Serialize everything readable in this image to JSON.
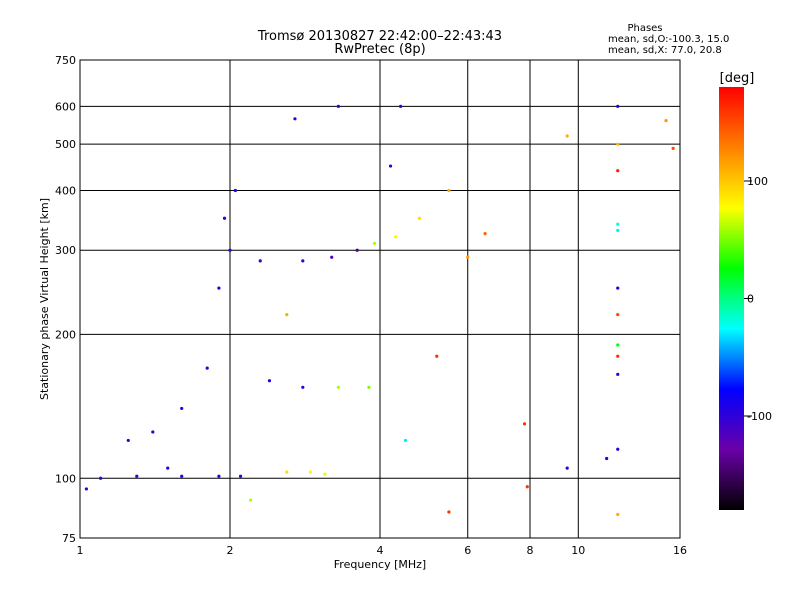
{
  "chart_data": {
    "type": "scatter",
    "title": "Tromsø 20130827 22:42:00–22:43:43",
    "subtitle": "RwPretec (8p)",
    "xlabel": "Frequency [MHz]",
    "ylabel": "Stationary phase Virtual Height [km]",
    "x_scale": "log",
    "y_scale": "log",
    "xlim": [
      1,
      16
    ],
    "ylim": [
      75,
      750
    ],
    "x_ticks": [
      1,
      2,
      4,
      6,
      8,
      10,
      16
    ],
    "y_ticks": [
      75,
      100,
      200,
      300,
      400,
      500,
      600,
      750
    ],
    "grid": true,
    "info": {
      "heading": "Phases",
      "line1": "mean, sd,O:-100.3, 15.0",
      "line2": "mean, sd,X:  77.0, 20.8"
    },
    "colorbar": {
      "unit": "[deg]",
      "ticks": [
        100,
        0,
        -100
      ],
      "range": [
        -180,
        180
      ],
      "colors": [
        "#000000",
        "#6a00a8",
        "#0000ff",
        "#00ffff",
        "#00ff00",
        "#ffff00",
        "#ff8000",
        "#ff0000"
      ]
    },
    "series": [
      {
        "x": 1.1,
        "y": 100,
        "phase": -100
      },
      {
        "x": 1.3,
        "y": 101,
        "phase": -100
      },
      {
        "x": 1.6,
        "y": 101,
        "phase": -100
      },
      {
        "x": 1.9,
        "y": 101,
        "phase": -100
      },
      {
        "x": 2.1,
        "y": 101,
        "phase": -100
      },
      {
        "x": 1.03,
        "y": 95,
        "phase": -100
      },
      {
        "x": 1.25,
        "y": 120,
        "phase": -100
      },
      {
        "x": 1.4,
        "y": 125,
        "phase": -100
      },
      {
        "x": 1.6,
        "y": 140,
        "phase": -100
      },
      {
        "x": 1.8,
        "y": 170,
        "phase": -100
      },
      {
        "x": 1.9,
        "y": 250,
        "phase": -100
      },
      {
        "x": 1.95,
        "y": 350,
        "phase": -100
      },
      {
        "x": 2.0,
        "y": 300,
        "phase": -100
      },
      {
        "x": 2.05,
        "y": 400,
        "phase": -100
      },
      {
        "x": 2.3,
        "y": 285,
        "phase": -100
      },
      {
        "x": 2.8,
        "y": 285,
        "phase": -100
      },
      {
        "x": 3.2,
        "y": 290,
        "phase": -120
      },
      {
        "x": 3.6,
        "y": 300,
        "phase": -140
      },
      {
        "x": 3.9,
        "y": 310,
        "phase": 60
      },
      {
        "x": 4.3,
        "y": 320,
        "phase": 80
      },
      {
        "x": 4.8,
        "y": 350,
        "phase": 90
      },
      {
        "x": 5.5,
        "y": 400,
        "phase": 110
      },
      {
        "x": 4.2,
        "y": 450,
        "phase": -100
      },
      {
        "x": 4.4,
        "y": 600,
        "phase": -100
      },
      {
        "x": 2.7,
        "y": 565,
        "phase": -100
      },
      {
        "x": 3.3,
        "y": 600,
        "phase": -100
      },
      {
        "x": 2.6,
        "y": 103,
        "phase": 90
      },
      {
        "x": 2.9,
        "y": 103,
        "phase": 80
      },
      {
        "x": 3.1,
        "y": 102,
        "phase": 70
      },
      {
        "x": 2.2,
        "y": 90,
        "phase": 60
      },
      {
        "x": 3.3,
        "y": 155,
        "phase": 60
      },
      {
        "x": 3.8,
        "y": 155,
        "phase": 50
      },
      {
        "x": 2.4,
        "y": 160,
        "phase": -100
      },
      {
        "x": 2.8,
        "y": 155,
        "phase": -100
      },
      {
        "x": 12,
        "y": 600,
        "phase": -100
      },
      {
        "x": 12,
        "y": 500,
        "phase": 110
      },
      {
        "x": 12,
        "y": 440,
        "phase": 170
      },
      {
        "x": 12,
        "y": 340,
        "phase": -20
      },
      {
        "x": 12,
        "y": 330,
        "phase": -30
      },
      {
        "x": 12,
        "y": 250,
        "phase": -100
      },
      {
        "x": 12,
        "y": 220,
        "phase": 150
      },
      {
        "x": 12,
        "y": 190,
        "phase": 20
      },
      {
        "x": 12,
        "y": 180,
        "phase": 160
      },
      {
        "x": 12,
        "y": 165,
        "phase": -100
      },
      {
        "x": 12,
        "y": 115,
        "phase": -100
      },
      {
        "x": 11.4,
        "y": 110,
        "phase": -100
      },
      {
        "x": 12,
        "y": 84,
        "phase": 110
      },
      {
        "x": 9.5,
        "y": 105,
        "phase": -100
      },
      {
        "x": 9.5,
        "y": 520,
        "phase": 110
      },
      {
        "x": 7.8,
        "y": 130,
        "phase": 160
      },
      {
        "x": 7.9,
        "y": 96,
        "phase": 160
      },
      {
        "x": 5.5,
        "y": 85,
        "phase": 160
      },
      {
        "x": 5.2,
        "y": 180,
        "phase": 160
      },
      {
        "x": 6.5,
        "y": 325,
        "phase": 140
      },
      {
        "x": 15,
        "y": 560,
        "phase": 120
      },
      {
        "x": 15.5,
        "y": 490,
        "phase": 150
      },
      {
        "x": 6.0,
        "y": 290,
        "phase": 120
      },
      {
        "x": 4.5,
        "y": 120,
        "phase": -30
      },
      {
        "x": 2.6,
        "y": 220,
        "phase": 110
      },
      {
        "x": 1.5,
        "y": 105,
        "phase": -100
      }
    ]
  }
}
